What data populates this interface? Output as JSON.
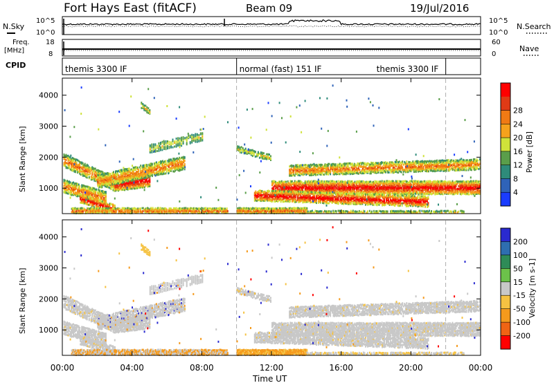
{
  "header": {
    "station": "Fort Hays East (fitACF)",
    "beam": "Beam 09",
    "date": "19/Jul/2016"
  },
  "top_panel": {
    "left_label": "N.Sky",
    "right_label": "N.Search",
    "y_ticks_left": [
      "10^5",
      "10^0"
    ],
    "y_ticks_right": [
      "10^5",
      "10^0"
    ]
  },
  "freq_panel": {
    "left_label_1": "Freq.",
    "left_label_2": "[MHz]",
    "right_label": "Nave",
    "y_ticks_left": [
      "18",
      "8"
    ],
    "y_ticks_right": [
      "60",
      "0"
    ]
  },
  "cpid_panel": {
    "label": "CPID",
    "segments": [
      {
        "label": "themis 3300 IF",
        "start": 0,
        "end": 10
      },
      {
        "label": "normal (fast) 151 IF",
        "start": 10,
        "end": 22
      },
      {
        "label": "themis 3300 IF",
        "start": 22,
        "end": 24
      }
    ]
  },
  "chart_data": [
    {
      "type": "heatmap",
      "name": "Power",
      "ylabel": "Slant Range [km]",
      "xlabel": "Time UT",
      "x_ticks": [
        "00:00",
        "04:00",
        "08:00",
        "12:00",
        "16:00",
        "20:00",
        "00:00"
      ],
      "xlim_hours": [
        0,
        24
      ],
      "ylim": [
        180,
        4550
      ],
      "y_ticks": [
        1000,
        2000,
        3000,
        4000
      ],
      "colorbar": {
        "label": "Power [dB]",
        "ticks": [
          "4",
          "8",
          "12",
          "16",
          "20",
          "24",
          "28"
        ],
        "colors": [
          "#1a3cff",
          "#2f63b8",
          "#2e8b7a",
          "#5a9e4a",
          "#cfe23a",
          "#f6a21c",
          "#f07a14",
          "#e03a16",
          "#ff0000"
        ]
      },
      "features": [
        {
          "desc": "band",
          "from_h": 0,
          "to_h": 5,
          "range_start": 1950,
          "range_end": 1100
        },
        {
          "desc": "band",
          "from_h": 2,
          "to_h": 7,
          "range_start": 1250,
          "range_end": 1850
        },
        {
          "desc": "band",
          "from_h": 13,
          "to_h": 24,
          "range_start": 1000,
          "range_end": 1750
        },
        {
          "desc": "band",
          "from_h": 12,
          "to_h": 22,
          "range_start": 900,
          "range_end": 650
        }
      ]
    },
    {
      "type": "heatmap",
      "name": "Velocity",
      "ylabel": "Slant Range [km]",
      "xlabel": "Time UT",
      "x_ticks": [
        "00:00",
        "04:00",
        "08:00",
        "12:00",
        "16:00",
        "20:00",
        "00:00"
      ],
      "xlim_hours": [
        0,
        24
      ],
      "ylim": [
        180,
        4550
      ],
      "y_ticks": [
        1000,
        2000,
        3000,
        4000
      ],
      "colorbar": {
        "label": "Velocity [m s-1]",
        "ticks": [
          "200",
          "100",
          "50",
          "15",
          "-15",
          "-50",
          "-100",
          "-200"
        ],
        "colors": [
          "#2a2ad0",
          "#2e6eb0",
          "#2e8b57",
          "#6cc24a",
          "#c8c8c8",
          "#f5c242",
          "#f59a1c",
          "#f06414",
          "#ff0000"
        ]
      }
    }
  ],
  "x_axis_label": "Time UT"
}
